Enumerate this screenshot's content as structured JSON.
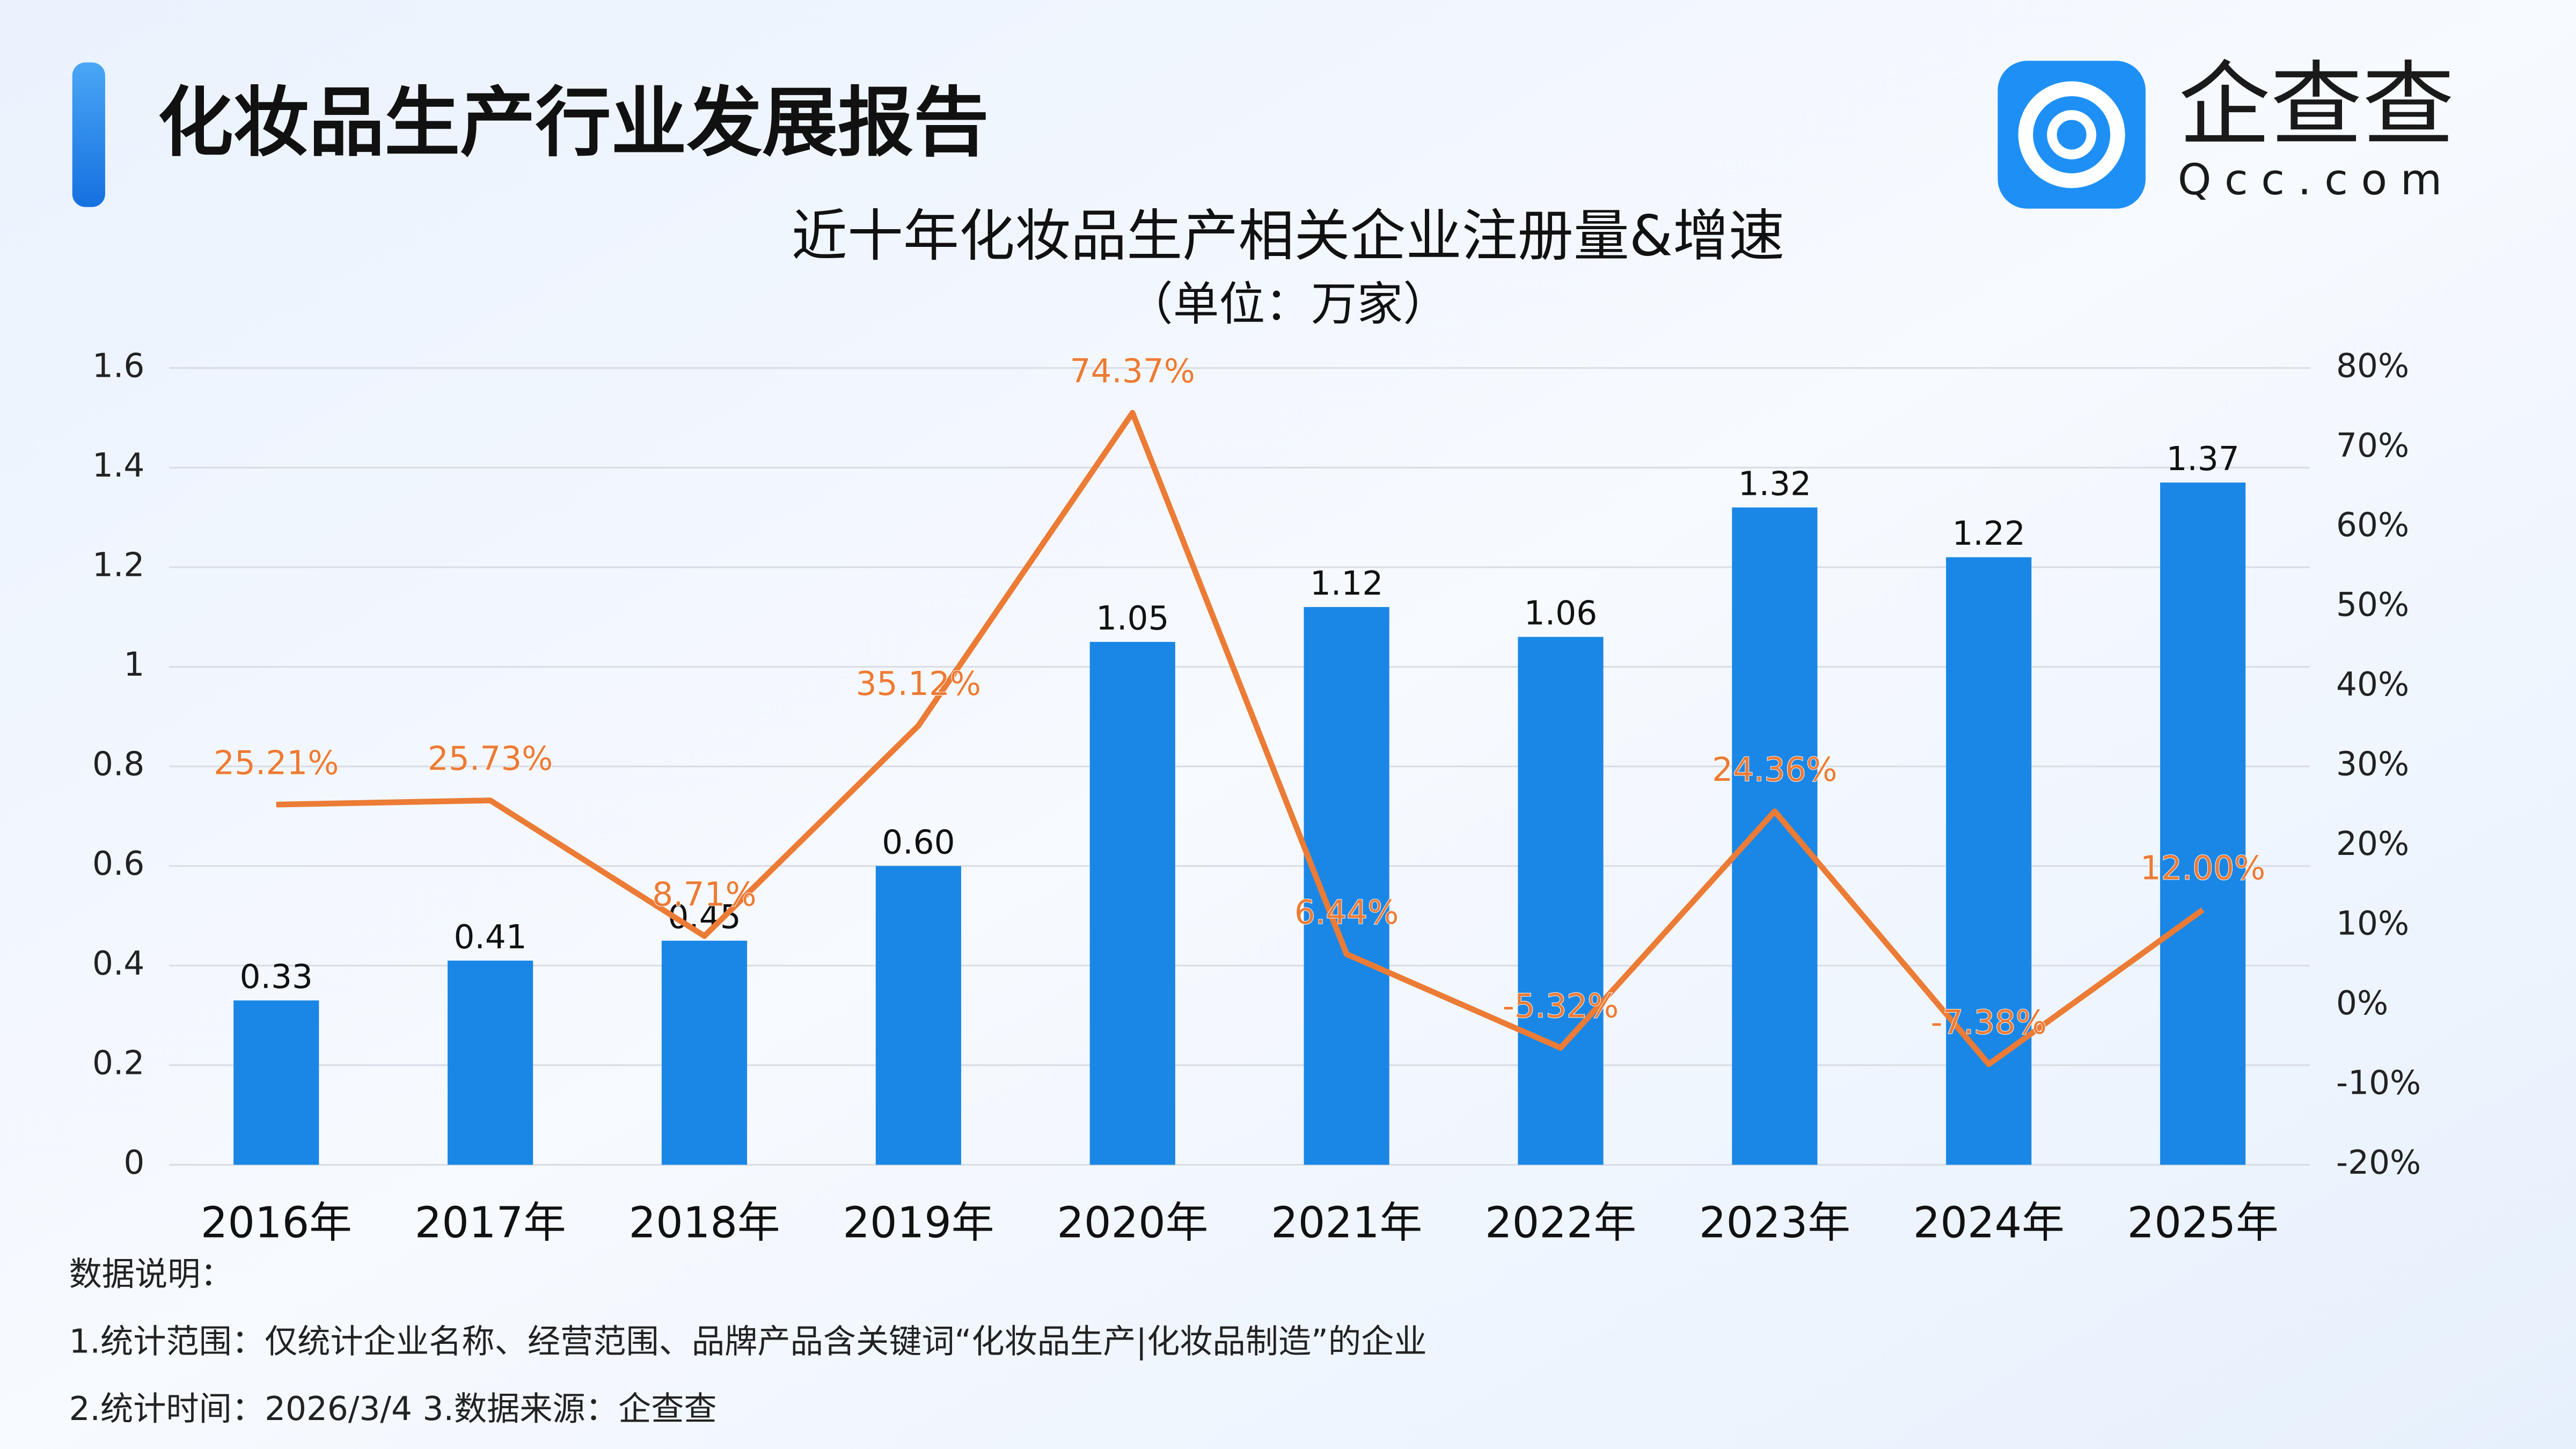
{
  "header": {
    "title": "化妆品生产行业发展报告"
  },
  "logo": {
    "name": "企查查",
    "domain": "Qcc.com"
  },
  "chart_data": {
    "type": "bar-line",
    "title": "近十年化妆品生产相关企业注册量&增速",
    "subtitle": "（单位：万家）",
    "categories": [
      "2016年",
      "2017年",
      "2018年",
      "2019年",
      "2020年",
      "2021年",
      "2022年",
      "2023年",
      "2024年",
      "2025年"
    ],
    "series": [
      {
        "type": "bar",
        "color": "#1a87e6",
        "values": [
          0.33,
          0.41,
          0.45,
          0.6,
          1.05,
          1.12,
          1.06,
          1.32,
          1.22,
          1.37
        ],
        "value_labels": [
          "0.33",
          "0.41",
          "0.45",
          "0.60",
          "1.05",
          "1.12",
          "1.06",
          "1.32",
          "1.22",
          "1.37"
        ]
      },
      {
        "type": "line",
        "axis": "y2",
        "color": "#ec7b35",
        "values": [
          25.21,
          25.73,
          8.71,
          35.12,
          74.37,
          6.44,
          -5.32,
          24.36,
          -7.38,
          12.0
        ],
        "value_labels": [
          "25.21%",
          "25.73%",
          "8.71%",
          "35.12%",
          "74.37%",
          "6.44%",
          "-5.32%",
          "24.36%",
          "-7.38%",
          "12.00%"
        ]
      }
    ],
    "ylim": [
      0,
      1.6
    ],
    "yticks": [
      0,
      0.2,
      0.4,
      0.6,
      0.8,
      1,
      1.2,
      1.4,
      1.6
    ],
    "y2lim": [
      -20,
      80
    ],
    "y2ticks": [
      {
        "value": -20,
        "label": "-20%"
      },
      {
        "value": -10,
        "label": "-10%"
      },
      {
        "value": 0,
        "label": "0%"
      },
      {
        "value": 10,
        "label": "10%"
      },
      {
        "value": 20,
        "label": "20%"
      },
      {
        "value": 30,
        "label": "30%"
      },
      {
        "value": 40,
        "label": "40%"
      },
      {
        "value": 50,
        "label": "50%"
      },
      {
        "value": 60,
        "label": "60%"
      },
      {
        "value": 70,
        "label": "70%"
      },
      {
        "value": 80,
        "label": "80%"
      }
    ],
    "grid": true
  },
  "notes": {
    "heading": "数据说明：",
    "lines": [
      "1.统计范围：仅统计企业名称、经营范围、品牌产品含关键词“化妆品生产|化妆品制造”的企业",
      "2.统计时间：2026/3/4  3.数据来源：企查查"
    ]
  }
}
